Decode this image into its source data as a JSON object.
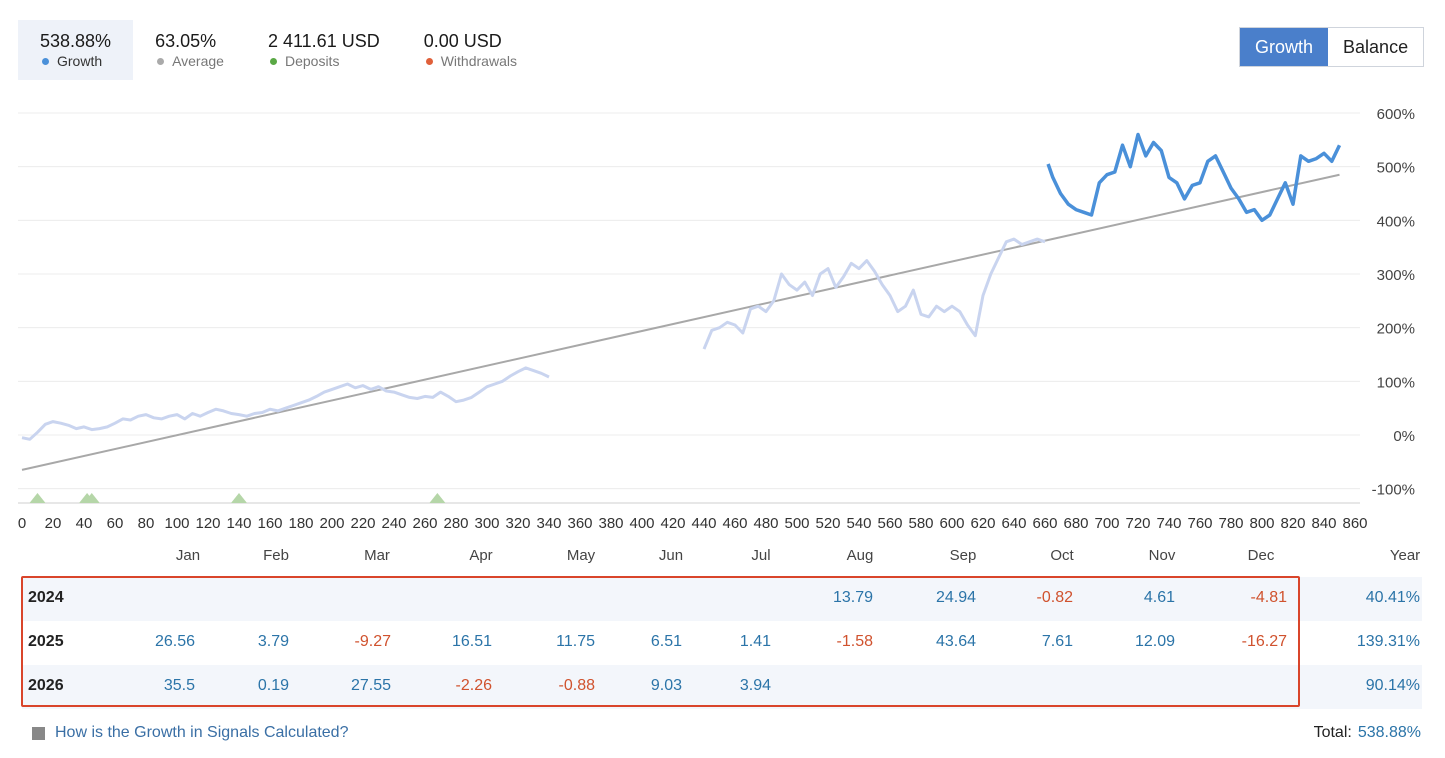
{
  "stats": [
    {
      "value": "538.88%",
      "label": "Growth",
      "color": "#4a90d9",
      "active": true
    },
    {
      "value": "63.05%",
      "label": "Average",
      "color": "#aaaaaa",
      "active": false
    },
    {
      "value": "2 411.61 USD",
      "label": "Deposits",
      "color": "#5aa845",
      "active": false
    },
    {
      "value": "0.00 USD",
      "label": "Withdrawals",
      "color": "#e0603a",
      "active": false
    }
  ],
  "toggle": {
    "growth_label": "Growth",
    "balance_label": "Balance"
  },
  "colors": {
    "accent": "#4a7fcb",
    "growth_line": "#4a90d9",
    "growth_line_faded": "#c9d4ef",
    "trend_line": "#a8a8a8",
    "positive": "#2b74a8",
    "negative": "#d0522e",
    "deposit_marker": "#b5d6a8"
  },
  "chart_data": {
    "type": "line",
    "x_ticks": [
      0,
      20,
      40,
      60,
      80,
      100,
      120,
      140,
      160,
      180,
      200,
      220,
      240,
      260,
      280,
      300,
      320,
      340,
      360,
      380,
      400,
      420,
      440,
      460,
      480,
      500,
      520,
      540,
      560,
      580,
      600,
      620,
      640,
      660,
      680,
      700,
      720,
      740,
      760,
      780,
      800,
      820,
      840,
      860
    ],
    "y_ticks": [
      -100,
      0,
      100,
      200,
      300,
      400,
      500,
      600
    ],
    "y_tick_labels": [
      "-100%",
      "0%",
      "100%",
      "200%",
      "300%",
      "400%",
      "500%",
      "600%"
    ],
    "xlim": [
      0,
      860
    ],
    "ylim": [
      -130,
      640
    ],
    "grid": true,
    "trend": {
      "x": [
        0,
        850
      ],
      "y": [
        -65,
        485
      ]
    },
    "faded_segments": [
      {
        "x": [
          0,
          5,
          10,
          15,
          20,
          25,
          30,
          35,
          40,
          45,
          50,
          55,
          60,
          65,
          70,
          75,
          80,
          85,
          90,
          95,
          100,
          105,
          110,
          115,
          120,
          125,
          130,
          135,
          140,
          145,
          150,
          155,
          160,
          165,
          170,
          175,
          180,
          185,
          190,
          195,
          200,
          205,
          210,
          215,
          220,
          225,
          230,
          235,
          240,
          245,
          250,
          255,
          260,
          265,
          270,
          275,
          280,
          285,
          290,
          295,
          300,
          305,
          310,
          315,
          320,
          325,
          330,
          335,
          340
        ],
        "y": [
          -5,
          -8,
          5,
          20,
          25,
          22,
          18,
          12,
          15,
          10,
          12,
          15,
          22,
          30,
          28,
          35,
          38,
          32,
          30,
          35,
          38,
          30,
          40,
          35,
          42,
          48,
          45,
          40,
          38,
          35,
          40,
          42,
          48,
          45,
          50,
          55,
          60,
          65,
          72,
          80,
          85,
          90,
          95,
          88,
          92,
          85,
          90,
          82,
          80,
          75,
          70,
          68,
          72,
          70,
          80,
          72,
          62,
          65,
          70,
          80,
          90,
          95,
          100,
          110,
          118,
          125,
          120,
          115,
          108
        ]
      },
      {
        "x": [
          440,
          445,
          450,
          455,
          460,
          465,
          470,
          475,
          480,
          485,
          490,
          495,
          500,
          505,
          510,
          515,
          520,
          525,
          530,
          535,
          540,
          545,
          550,
          555,
          560,
          565,
          570,
          575,
          580,
          585,
          590,
          595,
          600,
          605,
          610,
          615,
          620,
          625,
          630,
          635,
          640,
          645,
          650,
          655,
          660
        ],
        "y": [
          160,
          195,
          200,
          210,
          205,
          190,
          235,
          240,
          230,
          250,
          300,
          280,
          270,
          285,
          260,
          300,
          310,
          275,
          295,
          320,
          310,
          325,
          305,
          280,
          260,
          230,
          240,
          270,
          225,
          220,
          240,
          230,
          240,
          230,
          205,
          185,
          260,
          300,
          330,
          360,
          365,
          355,
          360,
          365,
          360
        ]
      }
    ],
    "main_series": {
      "name": "Growth",
      "x": [
        662,
        665,
        670,
        675,
        680,
        685,
        690,
        695,
        700,
        705,
        710,
        715,
        720,
        725,
        730,
        735,
        740,
        745,
        750,
        755,
        760,
        765,
        770,
        775,
        780,
        785,
        790,
        795,
        800,
        805,
        810,
        815,
        820,
        825,
        830,
        835,
        840,
        845,
        850
      ],
      "y": [
        505,
        480,
        450,
        430,
        420,
        415,
        410,
        470,
        485,
        490,
        540,
        500,
        560,
        520,
        545,
        530,
        480,
        470,
        440,
        465,
        470,
        510,
        520,
        490,
        460,
        440,
        415,
        420,
        400,
        410,
        440,
        470,
        430,
        520,
        510,
        515,
        525,
        510,
        540
      ]
    },
    "deposit_markers_x": [
      10,
      42,
      45,
      140,
      268
    ]
  },
  "months": [
    "Jan",
    "Feb",
    "Mar",
    "Apr",
    "May",
    "Jun",
    "Jul",
    "Aug",
    "Sep",
    "Oct",
    "Nov",
    "Dec"
  ],
  "year_header": "Year",
  "table": [
    {
      "year": "2024",
      "values": [
        "",
        "",
        "",
        "",
        "",
        "",
        "",
        "13.79",
        "24.94",
        "-0.82",
        "4.61",
        "-4.81"
      ],
      "total": "40.41%"
    },
    {
      "year": "2025",
      "values": [
        "26.56",
        "3.79",
        "-9.27",
        "16.51",
        "11.75",
        "6.51",
        "1.41",
        "-1.58",
        "43.64",
        "7.61",
        "12.09",
        "-16.27"
      ],
      "total": "139.31%"
    },
    {
      "year": "2026",
      "values": [
        "35.5",
        "0.19",
        "27.55",
        "-2.26",
        "-0.88",
        "9.03",
        "3.94",
        "",
        "",
        "",
        "",
        ""
      ],
      "total": "90.14%"
    }
  ],
  "footer": {
    "help_text": "How is the Growth in Signals Calculated?",
    "total_label": "Total:",
    "total_value": "538.88%"
  }
}
